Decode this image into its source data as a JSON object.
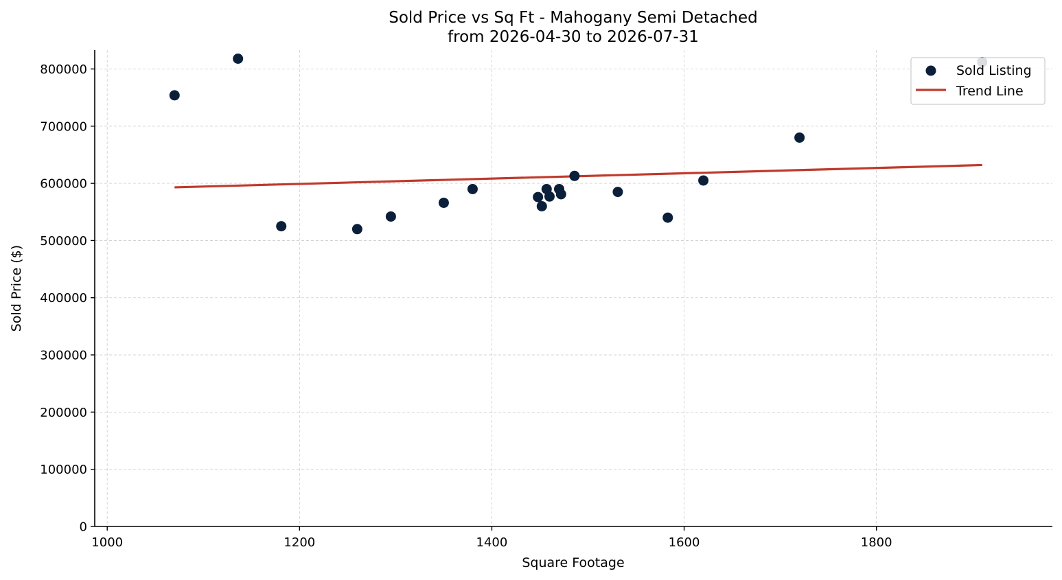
{
  "chart_data": {
    "type": "scatter",
    "title": "Sold Price vs Sq Ft - Mahogany Semi Detached",
    "subtitle": "from 2026-04-30 to 2026-07-31",
    "xlabel": "Square Footage",
    "ylabel": "Sold Price ($)",
    "xlim": [
      987,
      1983
    ],
    "ylim": [
      0,
      833000
    ],
    "xticks": [
      1000,
      1200,
      1400,
      1600,
      1800
    ],
    "xtick_labels": [
      "1000",
      "1200",
      "1400",
      "1600",
      "1800"
    ],
    "yticks": [
      0,
      100000,
      200000,
      300000,
      400000,
      500000,
      600000,
      700000,
      800000
    ],
    "ytick_labels": [
      "0",
      "100000",
      "200000",
      "300000",
      "400000",
      "500000",
      "600000",
      "700000",
      "800000"
    ],
    "grid": true,
    "legend_position": "top-right",
    "series": [
      {
        "name": "Sold Listing",
        "kind": "scatter",
        "color": "#0b1f3a",
        "x": [
          1070,
          1136,
          1181,
          1260,
          1295,
          1350,
          1380,
          1448,
          1452,
          1457,
          1460,
          1470,
          1472,
          1486,
          1531,
          1583,
          1620,
          1720,
          1910
        ],
        "y": [
          754000,
          818000,
          525000,
          520000,
          542000,
          566000,
          590000,
          576000,
          560000,
          590000,
          577000,
          590000,
          581000,
          613000,
          585000,
          540000,
          605000,
          680000,
          812000
        ]
      },
      {
        "name": "Trend Line",
        "kind": "line",
        "color": "#c0392b",
        "x": [
          1070,
          1910
        ],
        "y": [
          593000,
          632000
        ]
      }
    ]
  }
}
